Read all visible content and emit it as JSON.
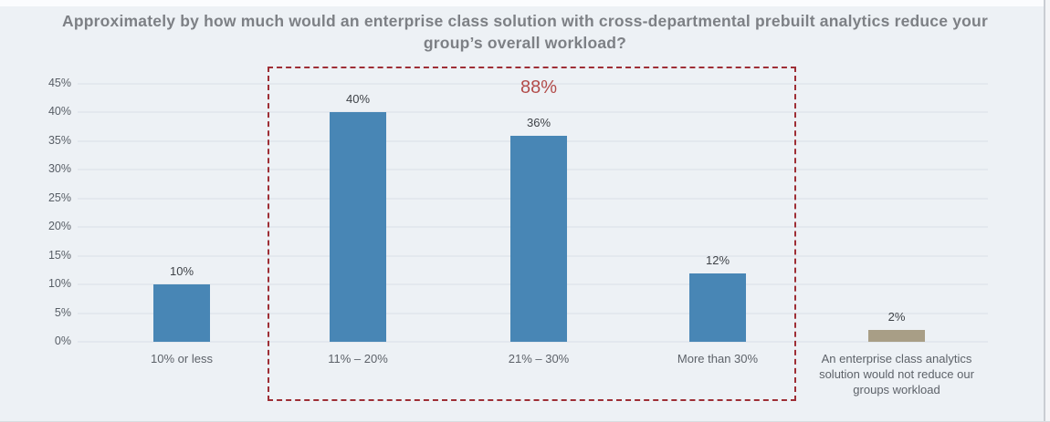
{
  "chart_data": {
    "type": "bar",
    "title": "Approximately by how much would an enterprise class solution with cross-departmental prebuilt analytics reduce your group’s overall workload?",
    "categories": [
      "10% or less",
      "11% – 20%",
      "21% – 30%",
      "More than 30%",
      "An enterprise class analytics solution would not reduce our groups workload"
    ],
    "values": [
      10,
      40,
      36,
      12,
      2
    ],
    "value_labels": [
      "10%",
      "40%",
      "36%",
      "12%",
      "2%"
    ],
    "bar_colors": [
      "#4886b5",
      "#4886b5",
      "#4886b5",
      "#4886b5",
      "#a89e86"
    ],
    "y_ticks": [
      "0%",
      "5%",
      "10%",
      "15%",
      "20%",
      "25%",
      "30%",
      "35%",
      "40%",
      "45%"
    ],
    "y_tick_values": [
      0,
      5,
      10,
      15,
      20,
      25,
      30,
      35,
      40,
      45
    ],
    "ylim": [
      0,
      45
    ],
    "grid": true,
    "legend": "none",
    "annotation": {
      "text": "88%",
      "color": "#b24c4a",
      "highlight_categories": [
        "11% – 20%",
        "21% – 30%",
        "More than 30%"
      ],
      "box_color": "#9e2e35"
    }
  },
  "colors": {
    "background": "#edf1f5",
    "bar_primary": "#4886b5",
    "bar_neutral": "#a89e86",
    "highlight_red": "#9e2e35",
    "annotation_red": "#b24c4a",
    "title_gray": "#7d8085",
    "axis_gray": "#585e66"
  }
}
